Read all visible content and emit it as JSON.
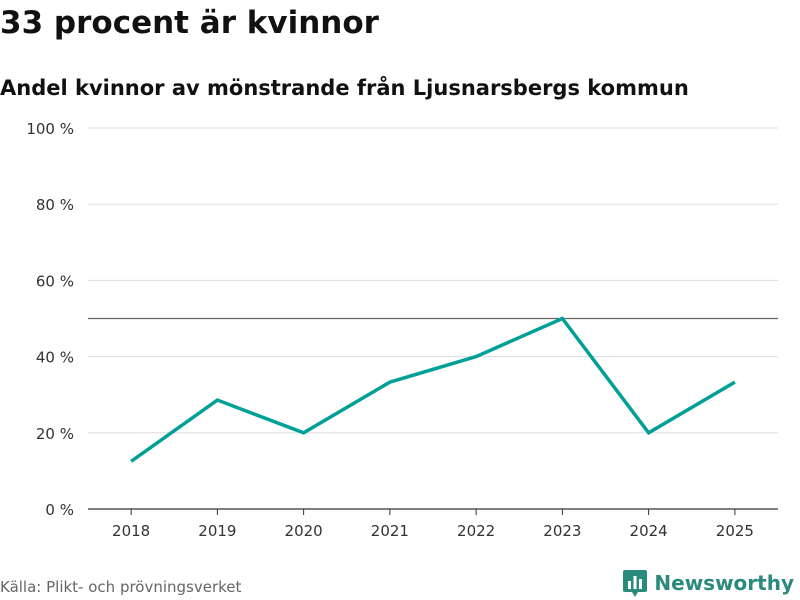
{
  "header": {
    "title": "33 procent är kvinnor",
    "subtitle": "Andel kvinnor av mönstrande från Ljusnarsbergs kommun"
  },
  "chart_data": {
    "type": "line",
    "title": "33 procent är kvinnor",
    "subtitle": "Andel kvinnor av mönstrande från Ljusnarsbergs kommun",
    "xlabel": "",
    "ylabel": "",
    "categories": [
      "2018",
      "2019",
      "2020",
      "2021",
      "2022",
      "2023",
      "2024",
      "2025"
    ],
    "series": [
      {
        "name": "Andel kvinnor",
        "values": [
          12.5,
          28.6,
          20,
          33.3,
          40,
          50,
          20,
          33.3
        ],
        "color": "#00a097"
      }
    ],
    "ylim": [
      0,
      100
    ],
    "yticks": [
      0,
      20,
      40,
      60,
      80,
      100
    ],
    "ytick_labels": [
      "0 %",
      "20 %",
      "40 %",
      "60 %",
      "80 %",
      "100 %"
    ],
    "reference_line": 50,
    "grid": true
  },
  "footer": {
    "source": "Källa: Plikt- och prövningsverket",
    "brand": "Newsworthy",
    "brand_icon": "bar-chart-bubble-icon",
    "brand_color": "#2b8a7e"
  }
}
